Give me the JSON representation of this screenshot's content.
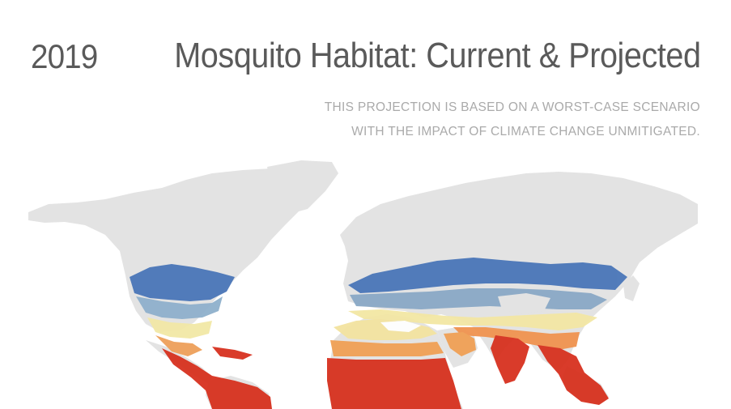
{
  "header": {
    "year": "2019",
    "title": "Mosquito Habitat: Current & Projected",
    "subtitle_lines": [
      "THIS PROJECTION IS BASED ON A WORST-CASE SCENARIO",
      "WITH THE IMPACT OF CLIMATE CHANGE UNMITIGATED."
    ]
  },
  "map": {
    "land_color": "#e3e3e3",
    "scale_colors": [
      "#4a76b8",
      "#7fa3cc",
      "#a9c3c8",
      "#cfdcb0",
      "#f5ecaa",
      "#f7c878",
      "#f19a50",
      "#e4542e",
      "#d7311f"
    ]
  }
}
